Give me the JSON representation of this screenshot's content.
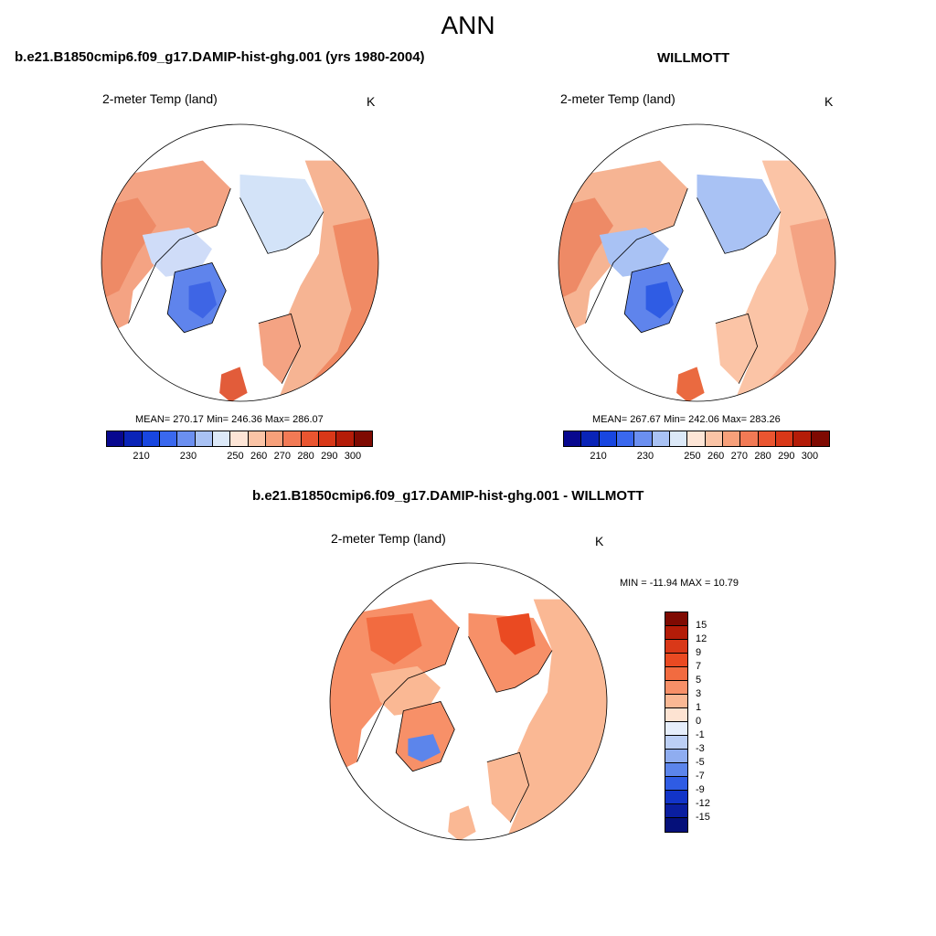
{
  "main_title": "ANN",
  "panels": [
    {
      "title": "b.e21.B1850cmip6.f09_g17.DAMIP-hist-ghg.001 (yrs 1980-2004)",
      "variable": "2-meter Temp (land)",
      "units": "K",
      "stats": "MEAN= 270.17  Min= 246.36  Max= 286.07"
    },
    {
      "title": "WILLMOTT",
      "variable": "2-meter Temp (land)",
      "units": "K",
      "stats": "MEAN= 267.67  Min= 242.06  Max= 283.26"
    },
    {
      "title": "b.e21.B1850cmip6.f09_g17.DAMIP-hist-ghg.001 - WILLMOTT",
      "variable": "2-meter Temp (land)",
      "units": "K",
      "stats": "MIN = -11.94 MAX =  10.79"
    }
  ],
  "abs_colorbar": {
    "labels": [
      "210",
      "230",
      "250",
      "260",
      "270",
      "280",
      "290",
      "300"
    ],
    "colors": [
      "#08088f",
      "#0a24b8",
      "#1846e0",
      "#3a68ee",
      "#6b8ff0",
      "#a9c2f4",
      "#dce9f8",
      "#fde5d6",
      "#fbc4a6",
      "#f7a07a",
      "#f27a55",
      "#ea5530",
      "#d93818",
      "#b41c08",
      "#7f0a02"
    ]
  },
  "diff_colorbar": {
    "labels": [
      "15",
      "12",
      "9",
      "7",
      "5",
      "3",
      "1",
      "0",
      "-1",
      "-3",
      "-5",
      "-7",
      "-9",
      "-12",
      "-15"
    ],
    "colors": [
      "#7f0a02",
      "#b41c08",
      "#d93818",
      "#ea4a22",
      "#f26b40",
      "#f79068",
      "#fab894",
      "#fde3d2",
      "#e6eefb",
      "#bccff5",
      "#8fadf0",
      "#5c85eb",
      "#2f5ce4",
      "#1234c8",
      "#0a1ea0",
      "#05107a"
    ]
  },
  "chart_data": [
    {
      "type": "heatmap",
      "title": "b.e21.B1850cmip6.f09_g17.DAMIP-hist-ghg.001 (yrs 1980-2004)",
      "variable": "2-meter Temp (land)",
      "units": "K",
      "mean": 270.17,
      "min": 246.36,
      "max": 286.07,
      "color_levels": [
        210,
        230,
        250,
        260,
        270,
        280,
        290,
        300
      ]
    },
    {
      "type": "heatmap",
      "title": "WILLMOTT",
      "variable": "2-meter Temp (land)",
      "units": "K",
      "mean": 267.67,
      "min": 242.06,
      "max": 283.26,
      "color_levels": [
        210,
        230,
        250,
        260,
        270,
        280,
        290,
        300
      ]
    },
    {
      "type": "heatmap",
      "title": "b.e21.B1850cmip6.f09_g17.DAMIP-hist-ghg.001 - WILLMOTT",
      "variable": "2-meter Temp (land)",
      "units": "K",
      "min": -11.94,
      "max": 10.79,
      "color_levels": [
        -15,
        -12,
        -9,
        -7,
        -5,
        -3,
        -1,
        0,
        1,
        3,
        5,
        7,
        9,
        12,
        15
      ]
    }
  ]
}
